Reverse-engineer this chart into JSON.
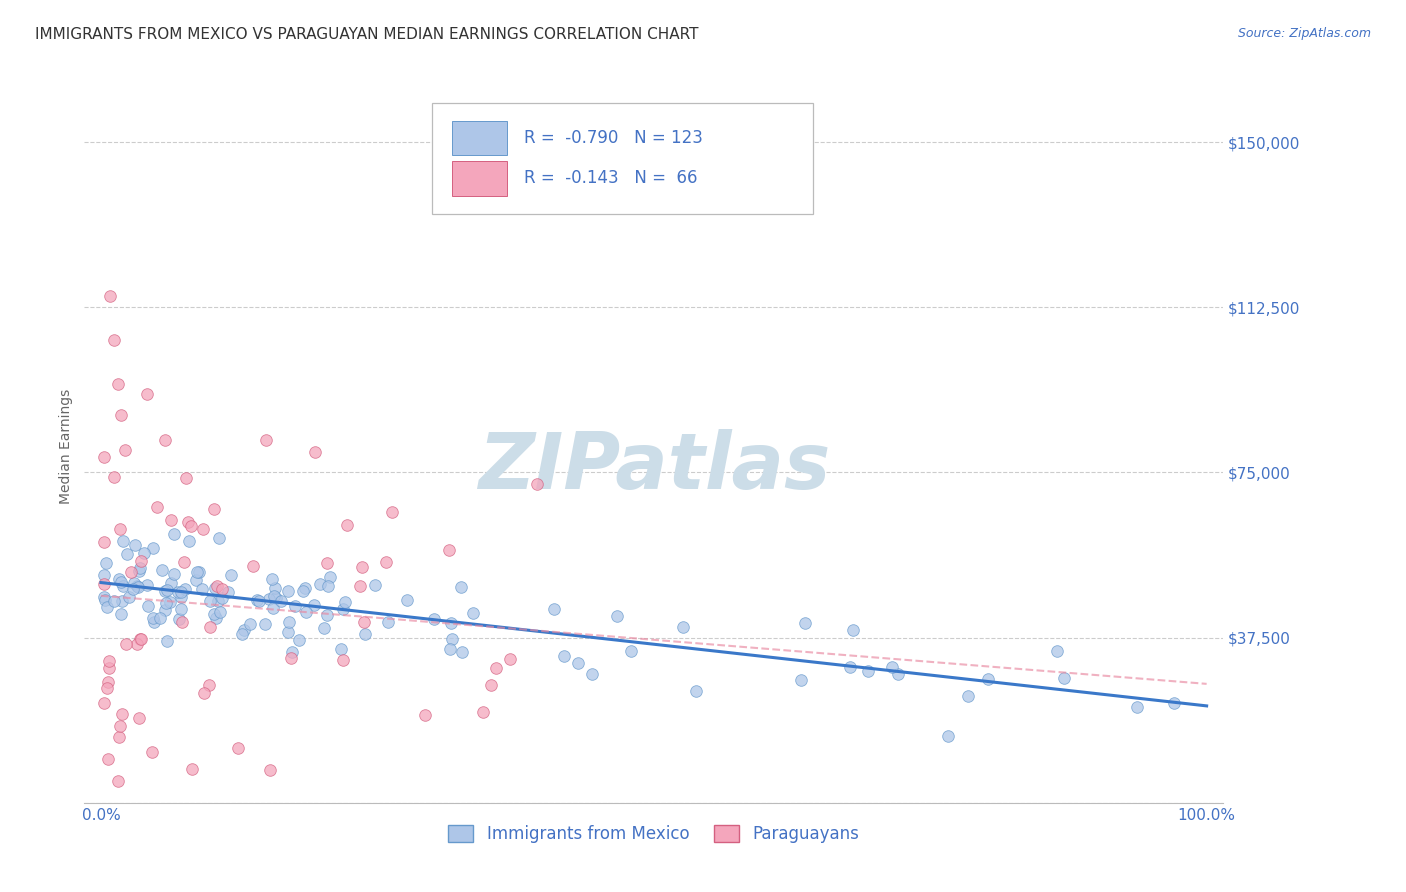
{
  "title": "IMMIGRANTS FROM MEXICO VS PARAGUAYAN MEDIAN EARNINGS CORRELATION CHART",
  "source": "Source: ZipAtlas.com",
  "ylabel": "Median Earnings",
  "watermark_text": "ZIPatlas",
  "background_color": "#ffffff",
  "legend_label_blue": "Immigrants from Mexico",
  "legend_label_pink": "Paraguayans",
  "blue_R": -0.79,
  "blue_N": 123,
  "pink_R": -0.143,
  "pink_N": 66,
  "blue_dot_color": "#aec6e8",
  "pink_dot_color": "#f4a6bc",
  "blue_edge_color": "#6699cc",
  "pink_edge_color": "#d46080",
  "blue_line_color": "#3a78c9",
  "pink_line_color": "#e888a0",
  "ytick_vals": [
    0,
    37500,
    75000,
    112500,
    150000
  ],
  "ytick_labels": [
    "",
    "$37,500",
    "$75,000",
    "$112,500",
    "$150,000"
  ],
  "ylim": [
    0,
    162000
  ],
  "xlim": [
    -0.015,
    1.015
  ],
  "title_fontsize": 11,
  "source_fontsize": 9,
  "axis_label_fontsize": 10,
  "tick_fontsize": 11,
  "legend_fontsize": 12,
  "watermark_fontsize": 56,
  "watermark_color": "#ccdde8",
  "title_color": "#333333",
  "source_color": "#4472c4",
  "tick_color": "#4472c4",
  "ylabel_color": "#666666",
  "grid_color": "#cccccc"
}
